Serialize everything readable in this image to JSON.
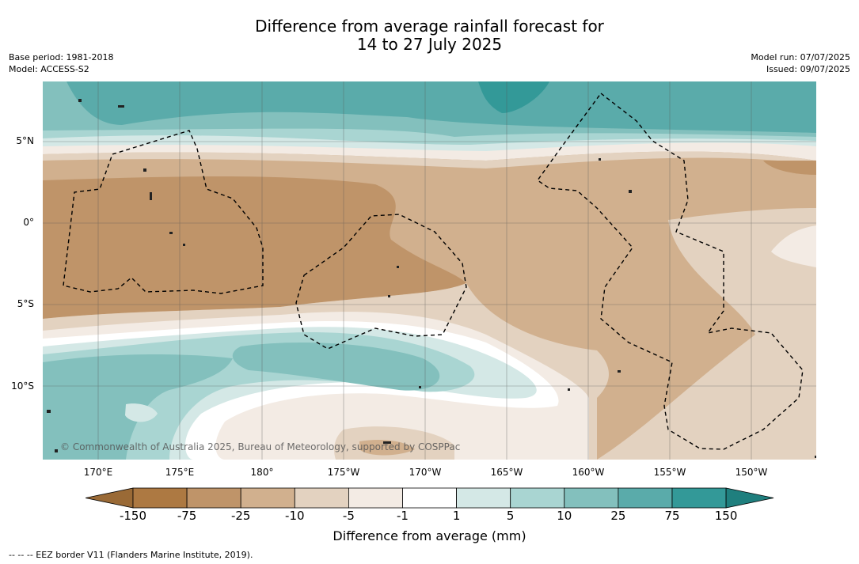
{
  "title": {
    "line1": "Difference from average rainfall forecast for",
    "line2": "14 to 27 July 2025"
  },
  "meta_left": {
    "base_period": "Base period: 1981-2018",
    "model": "Model: ACCESS-S2"
  },
  "meta_right": {
    "model_run": "Model run: 07/07/2025",
    "issued": "Issued: 09/07/2025"
  },
  "map": {
    "copyright": "© Commonwealth of Australia 2025, Bureau of Meteorology, supported by COSPPac",
    "lat_labels": [
      "5°N",
      "0°",
      "5°S",
      "10°S"
    ],
    "lon_labels": [
      "170°E",
      "175°E",
      "180°",
      "175°W",
      "170°W",
      "165°W",
      "160°W",
      "155°W",
      "150°W"
    ]
  },
  "colorbar": {
    "ticks": [
      "-150",
      "-75",
      "-25",
      "-10",
      "-5",
      "-1",
      "1",
      "5",
      "10",
      "25",
      "75",
      "150"
    ],
    "colors": [
      "#9a6a36",
      "#ad7942",
      "#bf9469",
      "#d1b08e",
      "#e3d2c0",
      "#f3ebe4",
      "#ffffff",
      "#d4e8e6",
      "#a9d5d2",
      "#83c0bd",
      "#5aabaa",
      "#339998",
      "#1f7f7e"
    ],
    "title": "Difference from average (mm)"
  },
  "legend": {
    "eez": "--  --  -- EEZ border V11 (Flanders Marine Institute, 2019)."
  }
}
